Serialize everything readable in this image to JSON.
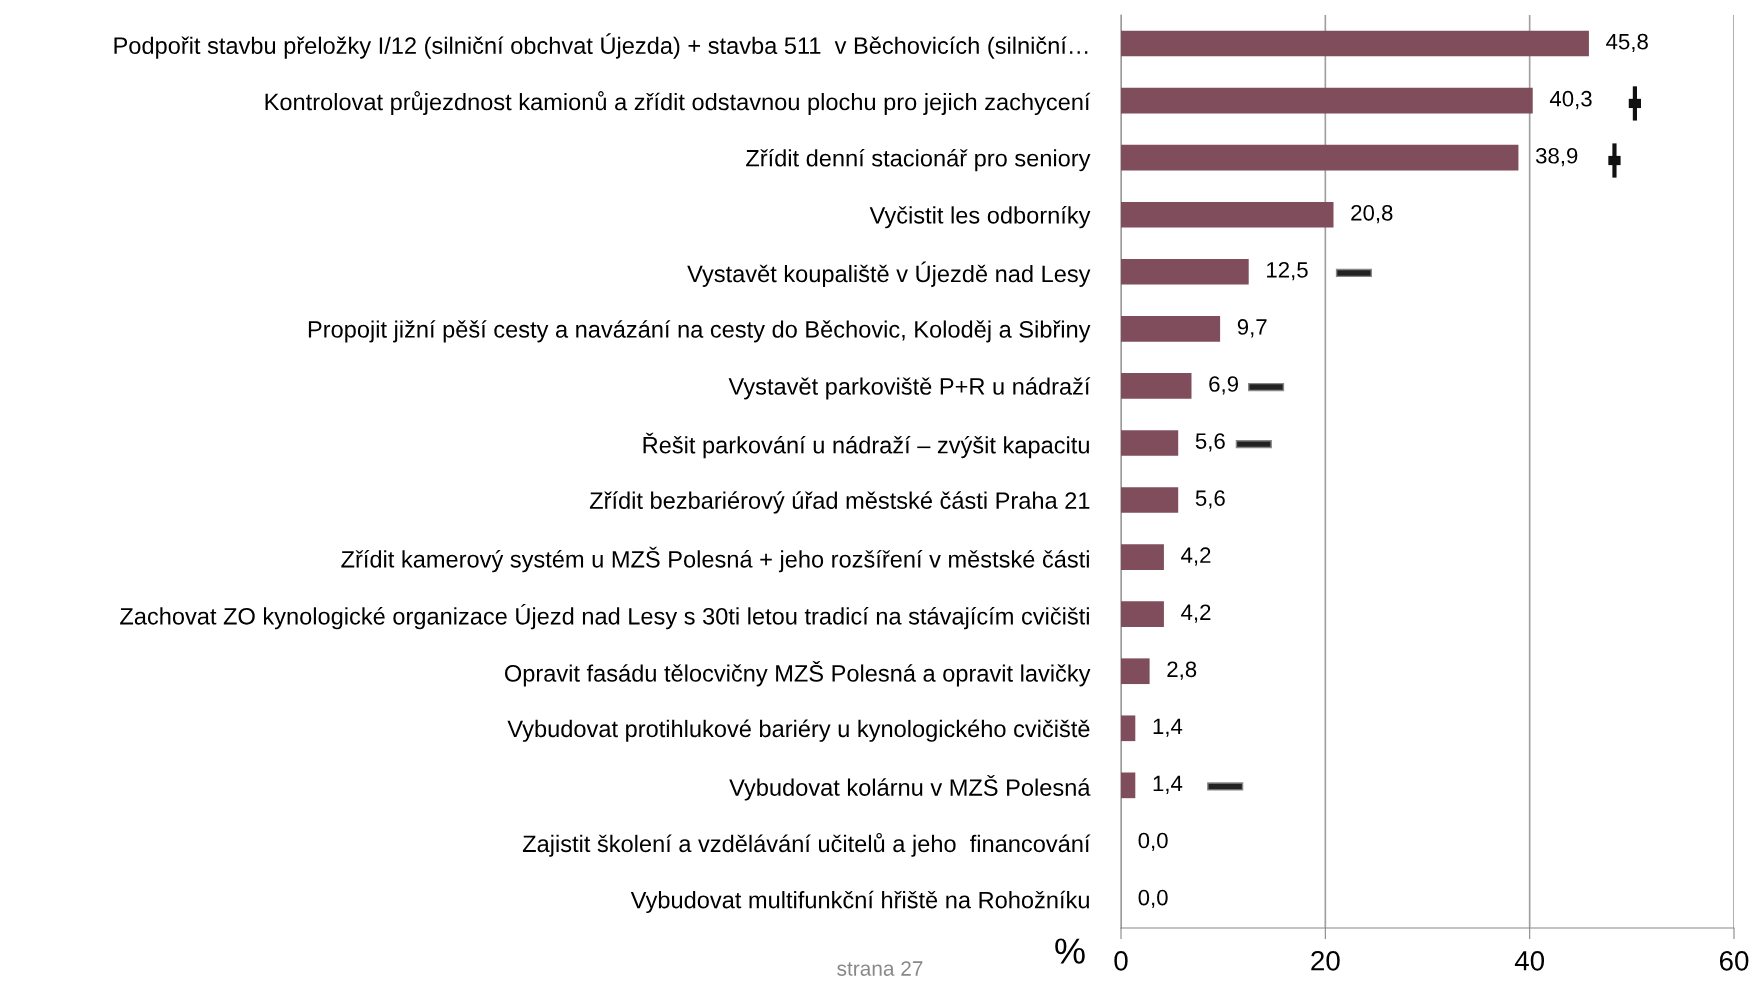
{
  "chart_data": {
    "type": "bar",
    "orientation": "horizontal",
    "xlabel": "%",
    "annotations": [
      "strana 27"
    ],
    "categories": [
      "Podpořit stavbu přeložky I/12 (silniční obchvat Újezda) + stavba 511  v Běchovicích (silniční…",
      "Kontrolovat průjezdnost kamionů a zřídit odstavnou plochu pro jejich zachycení",
      "Zřídit denní stacionář pro seniory",
      "Vyčistit les odborníky",
      "Vystavět koupaliště v Újezdě nad Lesy",
      "Propojit jižní pěší cesty a navázání na cesty do Běchovic, Koloděj a Sibřiny",
      "Vystavět parkoviště P+R u nádraží",
      "Řešit parkování u nádraží – zvýšit kapacitu",
      "Zřídit bezbariérový úřad městské části Praha 21",
      "Zřídit kamerový systém u MZŠ Polesná + jeho rozšíření v městské části",
      "Zachovat ZO kynologické organizace Újezd nad Lesy s 30ti letou tradicí na stávajícím cvičišti",
      "Opravit fasádu tělocvičny MZŠ Polesná a opravit lavičky",
      "Vybudovat protihlukové bariéry u kynologického cvičiště",
      "Vybudovat kolárnu v MZŠ Polesná",
      "Zajistit školení a vzdělávání učitelů a jeho  financování",
      "Vybudovat multifunkční hřiště na Rohožníku"
    ],
    "values": [
      45.8,
      40.3,
      38.9,
      20.8,
      12.5,
      9.7,
      6.9,
      5.6,
      5.6,
      4.2,
      4.2,
      2.8,
      1.4,
      1.4,
      0.0,
      0.0
    ],
    "value_labels": [
      "45,8",
      "40,3",
      "38,9",
      "20,8",
      "12,5",
      "9,7",
      "6,9",
      "5,6",
      "5,6",
      "4,2",
      "4,2",
      "2,8",
      "1,4",
      "1,4",
      "0,0",
      "0,0"
    ],
    "color": "#7f4d5c",
    "xlim": [
      0,
      60
    ],
    "xticks": [
      0,
      20,
      40,
      60
    ],
    "grid": "x"
  }
}
